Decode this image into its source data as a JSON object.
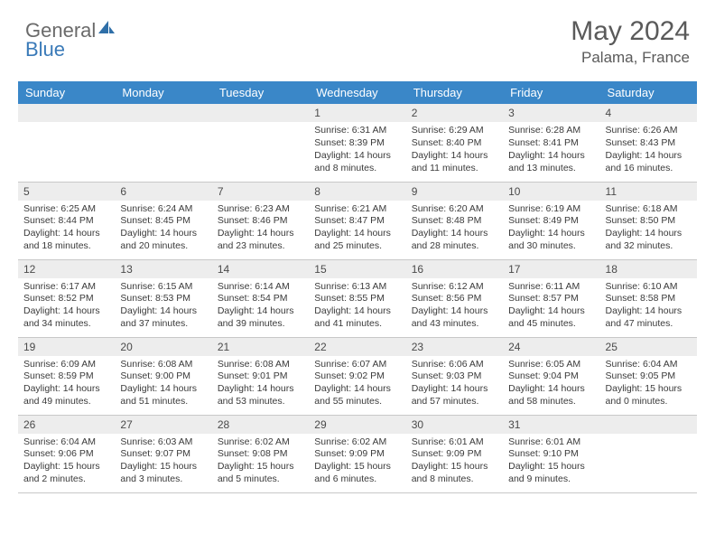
{
  "logo": {
    "part1": "General",
    "part2": "Blue"
  },
  "title": "May 2024",
  "location": "Palama, France",
  "colors": {
    "header_bg": "#3a87c8",
    "header_text": "#ffffff",
    "daynum_bg": "#ededed",
    "border": "#c8c8c8",
    "text": "#3a3a3a",
    "logo_blue": "#2f6fa8"
  },
  "weekdays": [
    "Sunday",
    "Monday",
    "Tuesday",
    "Wednesday",
    "Thursday",
    "Friday",
    "Saturday"
  ],
  "weeks": [
    [
      null,
      null,
      null,
      {
        "n": "1",
        "sr": "Sunrise: 6:31 AM",
        "ss": "Sunset: 8:39 PM",
        "dl": "Daylight: 14 hours and 8 minutes."
      },
      {
        "n": "2",
        "sr": "Sunrise: 6:29 AM",
        "ss": "Sunset: 8:40 PM",
        "dl": "Daylight: 14 hours and 11 minutes."
      },
      {
        "n": "3",
        "sr": "Sunrise: 6:28 AM",
        "ss": "Sunset: 8:41 PM",
        "dl": "Daylight: 14 hours and 13 minutes."
      },
      {
        "n": "4",
        "sr": "Sunrise: 6:26 AM",
        "ss": "Sunset: 8:43 PM",
        "dl": "Daylight: 14 hours and 16 minutes."
      }
    ],
    [
      {
        "n": "5",
        "sr": "Sunrise: 6:25 AM",
        "ss": "Sunset: 8:44 PM",
        "dl": "Daylight: 14 hours and 18 minutes."
      },
      {
        "n": "6",
        "sr": "Sunrise: 6:24 AM",
        "ss": "Sunset: 8:45 PM",
        "dl": "Daylight: 14 hours and 20 minutes."
      },
      {
        "n": "7",
        "sr": "Sunrise: 6:23 AM",
        "ss": "Sunset: 8:46 PM",
        "dl": "Daylight: 14 hours and 23 minutes."
      },
      {
        "n": "8",
        "sr": "Sunrise: 6:21 AM",
        "ss": "Sunset: 8:47 PM",
        "dl": "Daylight: 14 hours and 25 minutes."
      },
      {
        "n": "9",
        "sr": "Sunrise: 6:20 AM",
        "ss": "Sunset: 8:48 PM",
        "dl": "Daylight: 14 hours and 28 minutes."
      },
      {
        "n": "10",
        "sr": "Sunrise: 6:19 AM",
        "ss": "Sunset: 8:49 PM",
        "dl": "Daylight: 14 hours and 30 minutes."
      },
      {
        "n": "11",
        "sr": "Sunrise: 6:18 AM",
        "ss": "Sunset: 8:50 PM",
        "dl": "Daylight: 14 hours and 32 minutes."
      }
    ],
    [
      {
        "n": "12",
        "sr": "Sunrise: 6:17 AM",
        "ss": "Sunset: 8:52 PM",
        "dl": "Daylight: 14 hours and 34 minutes."
      },
      {
        "n": "13",
        "sr": "Sunrise: 6:15 AM",
        "ss": "Sunset: 8:53 PM",
        "dl": "Daylight: 14 hours and 37 minutes."
      },
      {
        "n": "14",
        "sr": "Sunrise: 6:14 AM",
        "ss": "Sunset: 8:54 PM",
        "dl": "Daylight: 14 hours and 39 minutes."
      },
      {
        "n": "15",
        "sr": "Sunrise: 6:13 AM",
        "ss": "Sunset: 8:55 PM",
        "dl": "Daylight: 14 hours and 41 minutes."
      },
      {
        "n": "16",
        "sr": "Sunrise: 6:12 AM",
        "ss": "Sunset: 8:56 PM",
        "dl": "Daylight: 14 hours and 43 minutes."
      },
      {
        "n": "17",
        "sr": "Sunrise: 6:11 AM",
        "ss": "Sunset: 8:57 PM",
        "dl": "Daylight: 14 hours and 45 minutes."
      },
      {
        "n": "18",
        "sr": "Sunrise: 6:10 AM",
        "ss": "Sunset: 8:58 PM",
        "dl": "Daylight: 14 hours and 47 minutes."
      }
    ],
    [
      {
        "n": "19",
        "sr": "Sunrise: 6:09 AM",
        "ss": "Sunset: 8:59 PM",
        "dl": "Daylight: 14 hours and 49 minutes."
      },
      {
        "n": "20",
        "sr": "Sunrise: 6:08 AM",
        "ss": "Sunset: 9:00 PM",
        "dl": "Daylight: 14 hours and 51 minutes."
      },
      {
        "n": "21",
        "sr": "Sunrise: 6:08 AM",
        "ss": "Sunset: 9:01 PM",
        "dl": "Daylight: 14 hours and 53 minutes."
      },
      {
        "n": "22",
        "sr": "Sunrise: 6:07 AM",
        "ss": "Sunset: 9:02 PM",
        "dl": "Daylight: 14 hours and 55 minutes."
      },
      {
        "n": "23",
        "sr": "Sunrise: 6:06 AM",
        "ss": "Sunset: 9:03 PM",
        "dl": "Daylight: 14 hours and 57 minutes."
      },
      {
        "n": "24",
        "sr": "Sunrise: 6:05 AM",
        "ss": "Sunset: 9:04 PM",
        "dl": "Daylight: 14 hours and 58 minutes."
      },
      {
        "n": "25",
        "sr": "Sunrise: 6:04 AM",
        "ss": "Sunset: 9:05 PM",
        "dl": "Daylight: 15 hours and 0 minutes."
      }
    ],
    [
      {
        "n": "26",
        "sr": "Sunrise: 6:04 AM",
        "ss": "Sunset: 9:06 PM",
        "dl": "Daylight: 15 hours and 2 minutes."
      },
      {
        "n": "27",
        "sr": "Sunrise: 6:03 AM",
        "ss": "Sunset: 9:07 PM",
        "dl": "Daylight: 15 hours and 3 minutes."
      },
      {
        "n": "28",
        "sr": "Sunrise: 6:02 AM",
        "ss": "Sunset: 9:08 PM",
        "dl": "Daylight: 15 hours and 5 minutes."
      },
      {
        "n": "29",
        "sr": "Sunrise: 6:02 AM",
        "ss": "Sunset: 9:09 PM",
        "dl": "Daylight: 15 hours and 6 minutes."
      },
      {
        "n": "30",
        "sr": "Sunrise: 6:01 AM",
        "ss": "Sunset: 9:09 PM",
        "dl": "Daylight: 15 hours and 8 minutes."
      },
      {
        "n": "31",
        "sr": "Sunrise: 6:01 AM",
        "ss": "Sunset: 9:10 PM",
        "dl": "Daylight: 15 hours and 9 minutes."
      },
      null
    ]
  ]
}
